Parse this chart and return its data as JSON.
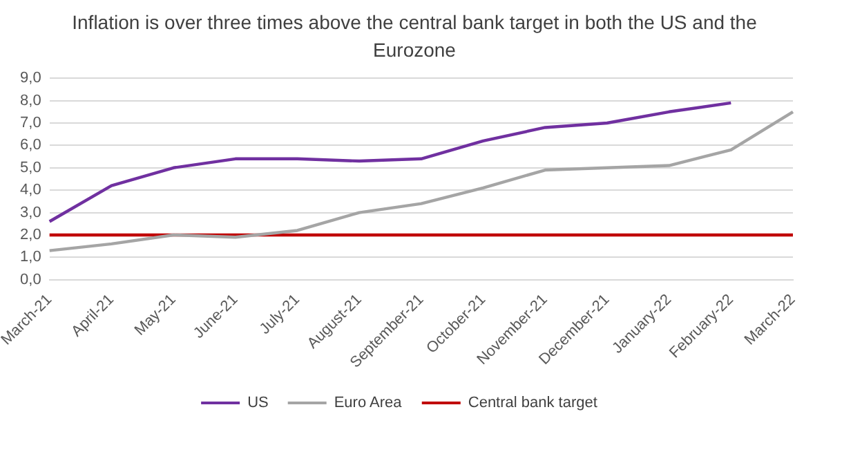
{
  "chart_data": {
    "type": "line",
    "title": "Inflation is over three times above the central bank target in both the US and the Eurozone",
    "categories": [
      "March-21",
      "April-21",
      "May-21",
      "June-21",
      "July-21",
      "August-21",
      "September-21",
      "October-21",
      "November-21",
      "December-21",
      "January-22",
      "February-22",
      "March-22"
    ],
    "series": [
      {
        "name": "US",
        "color": "#7030a0",
        "values": [
          2.6,
          4.2,
          5.0,
          5.4,
          5.4,
          5.3,
          5.4,
          6.2,
          6.8,
          7.0,
          7.5,
          7.9,
          null
        ]
      },
      {
        "name": "Euro Area",
        "color": "#a5a5a5",
        "values": [
          1.3,
          1.6,
          2.0,
          1.9,
          2.2,
          3.0,
          3.4,
          4.1,
          4.9,
          5.0,
          5.1,
          5.8,
          7.5
        ]
      },
      {
        "name": "Central bank target",
        "color": "#c00000",
        "values": [
          2.0,
          2.0,
          2.0,
          2.0,
          2.0,
          2.0,
          2.0,
          2.0,
          2.0,
          2.0,
          2.0,
          2.0,
          2.0
        ]
      }
    ],
    "ylim": [
      0,
      9
    ],
    "yticks": [
      {
        "value": 0,
        "label": "0,0"
      },
      {
        "value": 1,
        "label": "1,0"
      },
      {
        "value": 2,
        "label": "2,0"
      },
      {
        "value": 3,
        "label": "3,0"
      },
      {
        "value": 4,
        "label": "4,0"
      },
      {
        "value": 5,
        "label": "5,0"
      },
      {
        "value": 6,
        "label": "6,0"
      },
      {
        "value": 7,
        "label": "7,0"
      },
      {
        "value": 8,
        "label": "8,0"
      },
      {
        "value": 9,
        "label": "9,0"
      }
    ],
    "grid": "y",
    "legend": "bottom",
    "marker": "none",
    "line_style": "solid"
  }
}
